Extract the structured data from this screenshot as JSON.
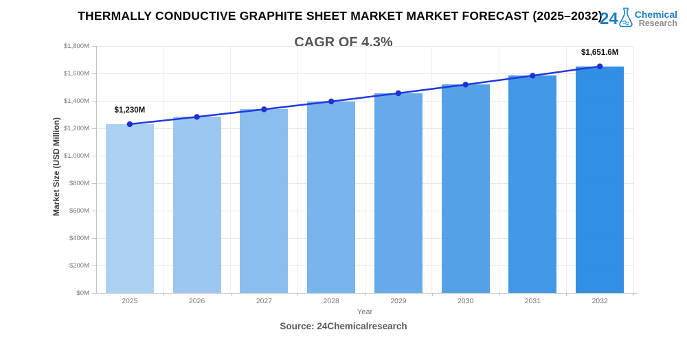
{
  "header": {
    "title": "THERMALLY CONDUCTIVE GRAPHITE SHEET MARKET MARKET FORECAST (2025–2032)",
    "subtitle": "CAGR OF 4.3%",
    "logo": {
      "number": "24",
      "line1": "Chemical",
      "line2": "Research",
      "blue": "#1b7ec6",
      "gray": "#8b8b8b"
    }
  },
  "chart_data": {
    "type": "bar",
    "overlay": "line",
    "title": "THERMALLY CONDUCTIVE GRAPHITE SHEET MARKET MARKET FORECAST (2025–2032)",
    "subtitle": "CAGR OF 4.3%",
    "categories": [
      "2025",
      "2026",
      "2027",
      "2028",
      "2029",
      "2030",
      "2031",
      "2032"
    ],
    "values": [
      1230,
      1282.9,
      1338.1,
      1395.6,
      1455.6,
      1518.2,
      1583.5,
      1651.6
    ],
    "annotations": [
      {
        "index": 0,
        "text": "$1,230M"
      },
      {
        "index": 7,
        "text": "$1,651.6M"
      }
    ],
    "xlabel": "Year",
    "ylabel": "Market Size (USD Million)",
    "ylim": [
      0,
      1800
    ],
    "ytick_step": 200,
    "ytick_labels": [
      "$0M",
      "$200M",
      "$400M",
      "$600M",
      "$800M",
      "$1,000M",
      "$1,200M",
      "$1,400M",
      "$1,600M",
      "$1,800M"
    ],
    "grid": "on",
    "legend": "none",
    "bar_colors": [
      "#A6CEF2",
      "#93C3F0",
      "#80B9EE",
      "#6DAFEB",
      "#5AA4E9",
      "#479AE6",
      "#3490E4",
      "#2286E1"
    ],
    "line_color": "#2338DB",
    "marker_color": "#1F30D2",
    "grid_color": "#e8e8e8"
  },
  "footer": {
    "source": "Source: 24Chemicalresearch"
  }
}
